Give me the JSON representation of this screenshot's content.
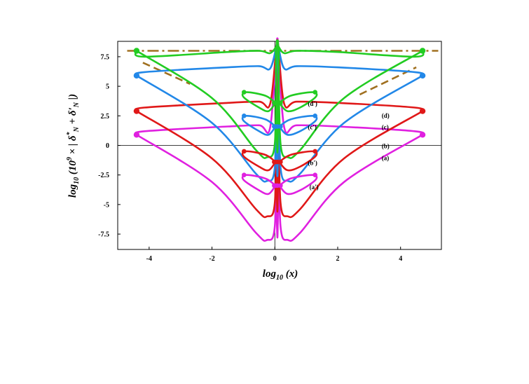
{
  "chart_data": {
    "type": "line",
    "xlabel": "log10 (x)",
    "ylabel": "log10 (10^9 × | δ*N + δ'N |)",
    "xlim": [
      -5,
      5.3
    ],
    "ylim": [
      -8.8,
      8.8
    ],
    "x_ticks": [
      {
        "value": -4,
        "label": "-4"
      },
      {
        "value": -2,
        "label": "-2"
      },
      {
        "value": 0,
        "label": "0"
      },
      {
        "value": 2,
        "label": "2"
      },
      {
        "value": 4,
        "label": "4"
      }
    ],
    "y_ticks": [
      {
        "value": 7.5,
        "label": "7.5"
      },
      {
        "value": 5,
        "label": "5"
      },
      {
        "value": 2.5,
        "label": "2.5"
      },
      {
        "value": 0,
        "label": "0"
      },
      {
        "value": -2.5,
        "label": "-2.5"
      },
      {
        "value": -5,
        "label": "-5"
      },
      {
        "value": -7.5,
        "label": "-7.5"
      }
    ],
    "grid": false,
    "zero_lines": true,
    "series": [
      {
        "key": "a",
        "label": "(a)",
        "color": "#e020e0",
        "outer_y": 0.9,
        "top_y": 1.7,
        "bottom_y": -8.0,
        "label_x": 3.4,
        "label_y": -1.25
      },
      {
        "key": "b",
        "label": "(b)",
        "color": "#e01818",
        "outer_y": 2.9,
        "top_y": 3.7,
        "bottom_y": -6.0,
        "label_x": 3.4,
        "label_y": -0.25
      },
      {
        "key": "c",
        "label": "(c)",
        "color": "#2288e8",
        "outer_y": 5.9,
        "top_y": 6.7,
        "bottom_y": -3.0,
        "label_x": 3.4,
        "label_y": 1.35
      },
      {
        "key": "d",
        "label": "(d)",
        "color": "#22cc22",
        "outer_y": 8.0,
        "top_y": 8.0,
        "bottom_y": -1.0,
        "label_x": 3.4,
        "label_y": 2.35
      },
      {
        "key": "a_prime",
        "label": "(a')",
        "color": "#e020e0",
        "center_y": -3.4,
        "label_x": 1.1,
        "label_y": -3.7
      },
      {
        "key": "b_prime",
        "label": "(b')",
        "color": "#e01818",
        "center_y": -1.4,
        "label_x": 1.05,
        "label_y": -1.65
      },
      {
        "key": "c_prime",
        "label": "(c')",
        "color": "#2288e8",
        "center_y": 1.6,
        "label_x": 1.05,
        "label_y": 1.35
      },
      {
        "key": "d_prime",
        "label": "(d')",
        "color": "#22cc22",
        "center_y": 3.6,
        "label_x": 1.05,
        "label_y": 3.35
      }
    ],
    "reference_lines": [
      {
        "style": "dash-dot",
        "color": "#a07020",
        "y": 8.0,
        "x_range": [
          -4.7,
          5.2
        ]
      },
      {
        "style": "dashed",
        "color": "#a07020",
        "points": [
          [
            -4.2,
            7.0
          ],
          [
            -2.7,
            5.2
          ]
        ]
      },
      {
        "style": "dashed",
        "color": "#a07020",
        "points": [
          [
            2.7,
            4.3
          ],
          [
            4.5,
            6.6
          ]
        ]
      }
    ]
  }
}
